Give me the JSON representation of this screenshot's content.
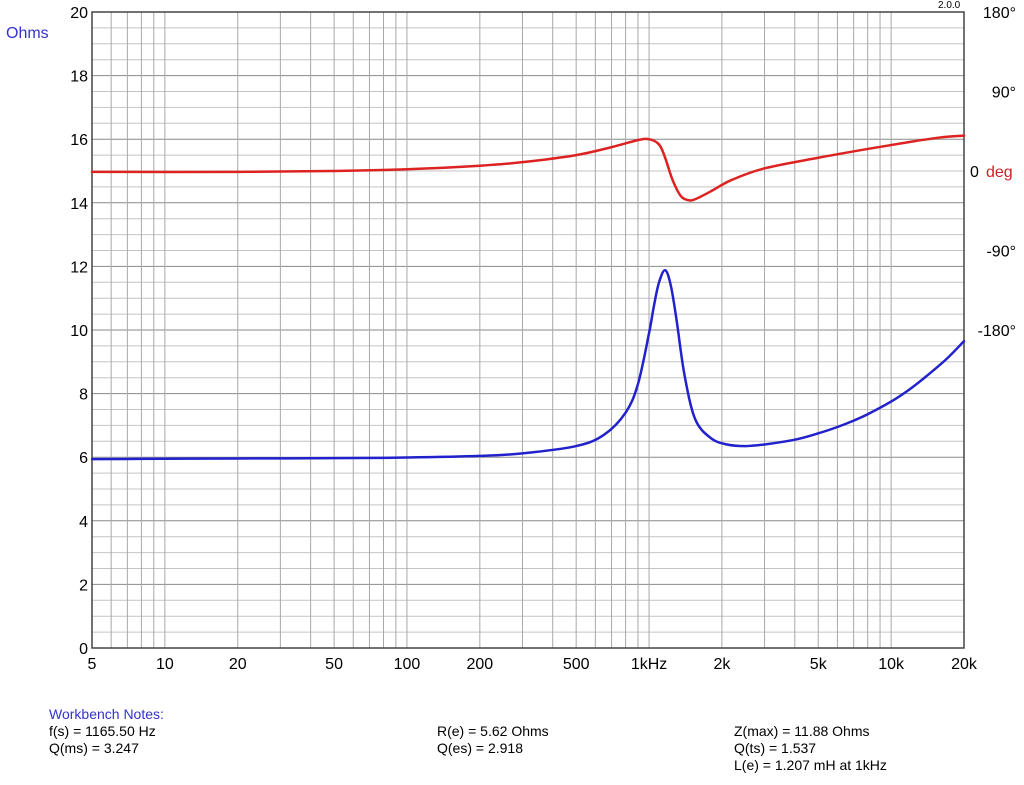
{
  "chart_data": {
    "type": "line",
    "version": "2.0.0",
    "xscale": "log",
    "xlim": [
      5,
      20000
    ],
    "x_ticks": [
      {
        "value": 5,
        "label": "5"
      },
      {
        "value": 10,
        "label": "10"
      },
      {
        "value": 20,
        "label": "20"
      },
      {
        "value": 50,
        "label": "50"
      },
      {
        "value": 100,
        "label": "100"
      },
      {
        "value": 200,
        "label": "200"
      },
      {
        "value": 500,
        "label": "500"
      },
      {
        "value": 1000,
        "label": "1kHz"
      },
      {
        "value": 2000,
        "label": "2k"
      },
      {
        "value": 5000,
        "label": "5k"
      },
      {
        "value": 10000,
        "label": "10k"
      },
      {
        "value": 20000,
        "label": "20k"
      }
    ],
    "y_left": {
      "label": "Ohms",
      "label_color": "#3333cc",
      "ylim": [
        0,
        20
      ],
      "ticks": [
        0,
        2,
        4,
        6,
        8,
        10,
        12,
        14,
        16,
        18,
        20
      ]
    },
    "y_right": {
      "ylim": [
        -540,
        180
      ],
      "ticks": [
        {
          "value": 180,
          "label": "180°"
        },
        {
          "value": 90,
          "label": "90°"
        },
        {
          "value": 0,
          "label": "0",
          "unit": "deg",
          "unit_color": "#cc2222"
        },
        {
          "value": -90,
          "label": "-90°"
        },
        {
          "value": -180,
          "label": "-180°"
        }
      ]
    },
    "grid": true,
    "series": [
      {
        "axis": "left",
        "color": "#2222cc",
        "x": [
          5,
          10,
          20,
          50,
          100,
          200,
          300,
          500,
          650,
          800,
          900,
          1000,
          1050,
          1100,
          1165.5,
          1230,
          1300,
          1400,
          1550,
          1800,
          2100,
          2500,
          3000,
          4000,
          5000,
          6000,
          7000,
          8000,
          10000,
          12000,
          14000,
          17000,
          20000
        ],
        "y": [
          5.94,
          5.95,
          5.96,
          5.97,
          5.99,
          6.04,
          6.12,
          6.35,
          6.7,
          7.4,
          8.3,
          9.9,
          10.8,
          11.5,
          11.88,
          11.4,
          10.3,
          8.6,
          7.2,
          6.6,
          6.4,
          6.35,
          6.4,
          6.55,
          6.75,
          6.95,
          7.15,
          7.35,
          7.75,
          8.15,
          8.55,
          9.1,
          9.65
        ]
      },
      {
        "axis": "right",
        "color": "#dd2222",
        "x": [
          5,
          20,
          50,
          100,
          200,
          300,
          500,
          700,
          900,
          1000,
          1100,
          1165.5,
          1250,
          1350,
          1450,
          1550,
          1800,
          2200,
          3000,
          5000,
          8000,
          12000,
          16000,
          20000
        ],
        "y": [
          -1,
          -1,
          0,
          2,
          6,
          10,
          18,
          27,
          35,
          36,
          30,
          15,
          -10,
          -28,
          -33,
          -32,
          -23,
          -10,
          3,
          15,
          25,
          33,
          38,
          40
        ]
      }
    ]
  },
  "notes": {
    "title": "Workbench Notes:",
    "col1": [
      "f(s) = 1165.50 Hz",
      "Q(ms) = 3.247"
    ],
    "col2": [
      "R(e) = 5.62 Ohms",
      "Q(es) = 2.918"
    ],
    "col3": [
      "Z(max) = 11.88 Ohms",
      "Q(ts) = 1.537",
      "L(e) = 1.207 mH at 1kHz"
    ]
  }
}
